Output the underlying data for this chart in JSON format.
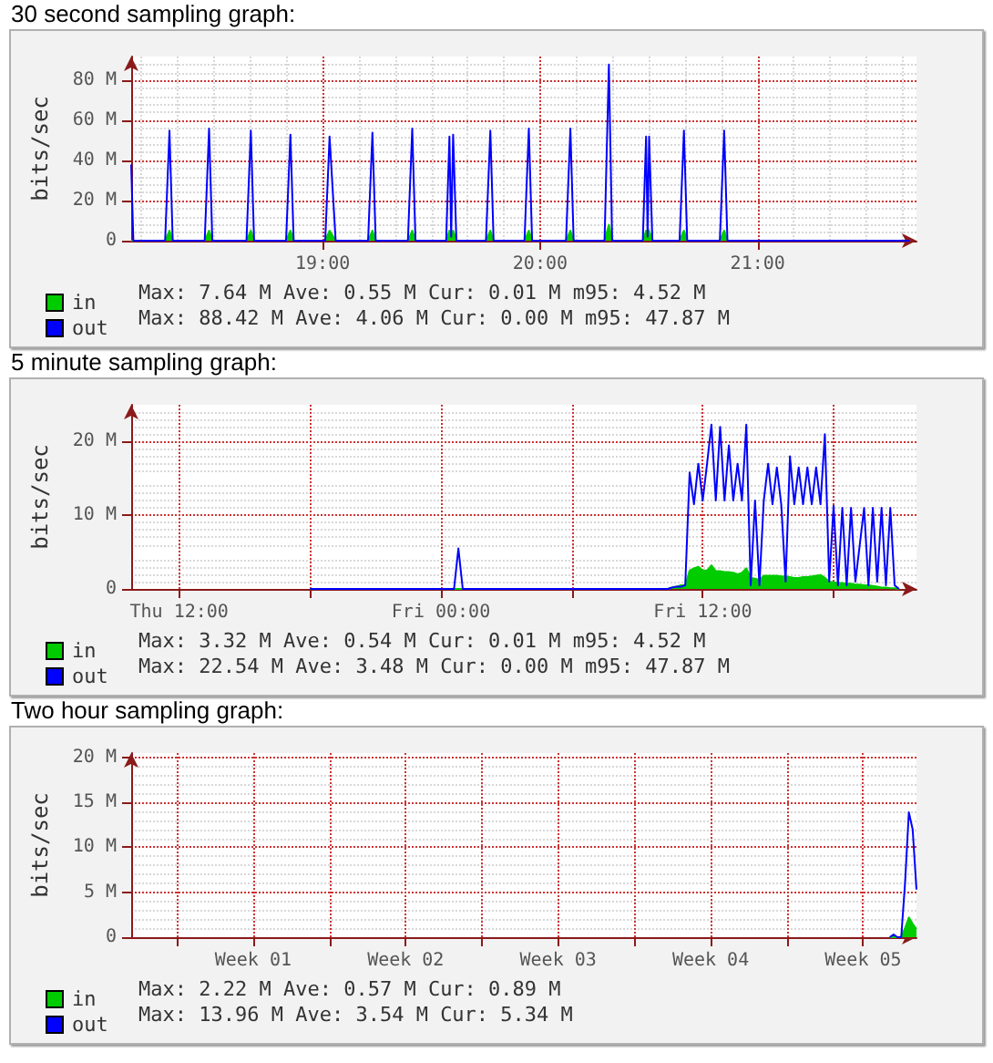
{
  "chart_data": [
    {
      "type": "line",
      "title": "30 second sampling graph:",
      "ylabel": "bits/sec",
      "grid": true,
      "legend": "bottom left",
      "xlim": [
        18.12,
        21.73
      ],
      "xticks": [
        {
          "value": 19,
          "label": "19:00"
        },
        {
          "value": 20,
          "label": "20:00"
        },
        {
          "value": 21,
          "label": "21:00"
        }
      ],
      "ylim": [
        0,
        92
      ],
      "yticks": [
        {
          "value": 0,
          "label": "0"
        },
        {
          "value": 20,
          "label": "20 M"
        },
        {
          "value": 40,
          "label": "40 M"
        },
        {
          "value": 60,
          "label": "60 M"
        },
        {
          "value": 80,
          "label": "80 M"
        }
      ],
      "x": [
        18.12,
        18.13,
        18.276,
        18.296,
        18.311,
        18.458,
        18.478,
        18.493,
        18.65,
        18.67,
        18.685,
        18.832,
        18.852,
        18.867,
        19.012,
        19.032,
        19.06,
        19.209,
        19.229,
        19.244,
        19.392,
        19.412,
        19.427,
        19.568,
        19.583,
        19.591,
        19.6,
        19.615,
        19.751,
        19.771,
        19.786,
        19.928,
        19.948,
        19.963,
        20.119,
        20.139,
        20.154,
        20.296,
        20.316,
        20.331,
        20.472,
        20.487,
        20.494,
        20.501,
        20.516,
        20.641,
        20.661,
        20.676,
        20.826,
        20.846,
        20.861,
        21.7
      ],
      "series": [
        {
          "name": "in",
          "type": "area",
          "color": "#00cc00",
          "values": [
            0,
            0,
            0,
            5,
            0,
            0,
            5,
            0,
            0,
            5,
            0,
            0,
            5,
            0,
            0,
            5,
            0,
            0,
            5,
            0,
            0,
            5,
            0,
            0,
            5,
            1,
            5,
            0,
            0,
            5,
            0,
            0,
            5,
            0,
            0,
            5,
            0,
            0,
            8,
            0,
            0,
            5,
            1,
            5,
            0,
            0,
            5,
            0,
            0,
            5,
            0,
            0
          ]
        },
        {
          "name": "out",
          "type": "line",
          "color": "#0000ff",
          "values": [
            38,
            0,
            0,
            55,
            0,
            0,
            56,
            0,
            0,
            55,
            0,
            0,
            53,
            0,
            0,
            52,
            0,
            0,
            54,
            0,
            0,
            56,
            0,
            0,
            52,
            2,
            53,
            0,
            0,
            55,
            0,
            0,
            56,
            0,
            0,
            56,
            0,
            0,
            88,
            0,
            0,
            52,
            2,
            52,
            0,
            0,
            55,
            0,
            0,
            55,
            0,
            0
          ]
        }
      ],
      "annotations": [
        "Max: 7.64 M Ave: 0.55 M Cur: 0.01 M m95: 4.52 M",
        "Max: 88.42 M Ave: 4.06 M Cur: 0.00 M m95: 47.87 M"
      ]
    },
    {
      "type": "line",
      "title": "5 minute sampling graph:",
      "ylabel": "bits/sec",
      "grid": true,
      "legend": "bottom left",
      "categories": [
        null,
        null,
        null,
        null,
        null,
        null,
        null,
        null,
        null,
        null,
        null,
        "Thu 12:00",
        null,
        null,
        null,
        null,
        null,
        null,
        null,
        null,
        null,
        null,
        null,
        null,
        null,
        null,
        null,
        null,
        null,
        null,
        null,
        null,
        null,
        null,
        null,
        null,
        null,
        null,
        null,
        null,
        null,
        null,
        null,
        null,
        null,
        null,
        null,
        null,
        null,
        null,
        null,
        null,
        null,
        null,
        null,
        null,
        null,
        null,
        null,
        null,
        null,
        null,
        null,
        null,
        null,
        null,
        null,
        null,
        null,
        null,
        null,
        "Fri 00:00",
        null,
        null,
        null,
        null,
        null,
        null,
        null,
        null,
        null,
        null,
        null,
        null,
        null,
        null,
        null,
        null,
        null,
        null,
        null,
        null,
        null,
        null,
        null,
        null,
        null,
        null,
        null,
        null,
        null,
        null,
        null,
        null,
        null,
        null,
        null,
        null,
        null,
        null,
        null,
        null,
        null,
        null,
        null,
        null,
        null,
        null,
        null,
        null,
        null,
        null,
        null,
        null,
        null,
        null,
        null,
        null,
        null,
        null,
        null,
        "Fri 12:00",
        null,
        null,
        null,
        null,
        null,
        null,
        null,
        null,
        null,
        null,
        null,
        null,
        null,
        null,
        null,
        null,
        null,
        null,
        null,
        null,
        null,
        null,
        null,
        null,
        null,
        null,
        null,
        null,
        null,
        null,
        null,
        null,
        null,
        null,
        null,
        null,
        null,
        null,
        null,
        null,
        null,
        null,
        null,
        null,
        null,
        null,
        null,
        null,
        null
      ],
      "ylim": [
        0,
        25
      ],
      "yticks": [
        {
          "value": 0,
          "label": "0"
        },
        {
          "value": 10,
          "label": "10 M"
        },
        {
          "value": 20,
          "label": "20 M"
        }
      ],
      "series": [
        {
          "name": "in",
          "type": "area",
          "color": "#00cc00",
          "values": [
            null,
            null,
            null,
            null,
            null,
            null,
            null,
            null,
            null,
            null,
            null,
            null,
            null,
            null,
            null,
            null,
            null,
            null,
            null,
            null,
            null,
            null,
            null,
            null,
            null,
            null,
            null,
            null,
            null,
            null,
            null,
            null,
            null,
            null,
            null,
            null,
            null,
            null,
            null,
            null,
            null,
            0,
            0,
            0,
            0,
            0,
            0,
            0,
            0,
            0,
            0,
            0,
            0,
            0,
            0,
            0,
            0,
            0,
            0,
            0,
            0,
            0,
            0,
            0,
            0,
            0,
            0,
            0,
            0,
            0,
            0,
            0,
            0,
            0,
            0,
            0,
            0,
            0,
            0,
            0,
            0,
            0,
            0,
            0,
            0,
            0,
            0,
            0,
            0,
            0,
            0,
            0,
            0,
            0,
            0,
            0,
            0,
            0,
            0,
            0,
            0,
            0,
            0,
            0,
            0,
            0,
            0,
            0,
            0,
            0,
            0,
            0,
            0,
            0,
            0,
            0,
            0,
            0,
            0,
            0,
            0,
            0,
            0,
            0,
            0.2,
            0.3,
            0.5,
            0.5,
            2.5,
            2.8,
            3,
            2.5,
            2.5,
            3.2,
            2.4,
            2.4,
            2.3,
            2.3,
            2.2,
            2,
            2.2,
            2.8,
            1.5,
            1.4,
            1.2,
            1.8,
            1.8,
            1.8,
            1.8,
            1.7,
            1.7,
            1.6,
            1.5,
            1.5,
            1.6,
            1.6,
            1.7,
            1.8,
            1.9,
            1.5,
            1,
            0.9,
            0.8,
            0.8,
            0.7,
            0.7,
            0.6,
            0.6,
            0.5,
            0.5,
            0.4,
            0.3,
            0.2,
            0.2,
            0.1,
            0.1,
            0,
            null,
            null,
            null,
            null
          ]
        },
        {
          "name": "out",
          "type": "line",
          "color": "#0000ff",
          "values": [
            null,
            null,
            null,
            null,
            null,
            null,
            null,
            null,
            null,
            null,
            null,
            null,
            null,
            null,
            null,
            null,
            null,
            null,
            null,
            null,
            null,
            null,
            null,
            null,
            null,
            null,
            null,
            null,
            null,
            null,
            null,
            null,
            null,
            null,
            null,
            null,
            null,
            null,
            null,
            null,
            null,
            0,
            0,
            0,
            0,
            0,
            0,
            0,
            0,
            0,
            0,
            0,
            0,
            0,
            0,
            0,
            0,
            0,
            0,
            0,
            0,
            0,
            0,
            0,
            0,
            0,
            0,
            0,
            0,
            0,
            0,
            0,
            0,
            0,
            0,
            5.5,
            0,
            0,
            0,
            0,
            0,
            0,
            0,
            0,
            0,
            0,
            0,
            0,
            0,
            0,
            0,
            0,
            0,
            0,
            0,
            0,
            0,
            0,
            0,
            0,
            0,
            0,
            0,
            0,
            0,
            0,
            0,
            0,
            0,
            0,
            0,
            0,
            0,
            0,
            0,
            0,
            0,
            0,
            0,
            0,
            0,
            0,
            0,
            0,
            0.2,
            0.3,
            0.3,
            0.5,
            15.8,
            11.5,
            17,
            12,
            17,
            22.3,
            12,
            22,
            12,
            19.5,
            12,
            17,
            12,
            22.3,
            0.5,
            12,
            0.5,
            12,
            17,
            11.5,
            16.5,
            11.5,
            1,
            18,
            11.5,
            16.5,
            11.5,
            16.5,
            11.5,
            16.5,
            11.5,
            21,
            1,
            11.3,
            0.5,
            11,
            0.5,
            11,
            1,
            6,
            11,
            0.5,
            11,
            1,
            11,
            0.5,
            11,
            0.5,
            0,
            null,
            null,
            null,
            null
          ]
        }
      ],
      "annotations": [
        "Max: 3.32 M Ave: 0.54 M Cur: 0.01 M m95: 4.52 M",
        "Max: 22.54 M Ave: 3.48 M Cur: 0.00 M m95: 47.87 M"
      ]
    },
    {
      "type": "line",
      "title": "Two hour sampling graph:",
      "ylabel": "bits/sec",
      "grid": true,
      "legend": "bottom left",
      "categories": [
        null,
        null,
        null,
        null,
        null,
        null,
        null,
        null,
        null,
        null,
        null,
        null,
        null,
        null,
        null,
        null,
        null,
        null,
        null,
        null,
        null,
        null,
        null,
        null,
        null,
        null,
        null,
        null,
        null,
        null,
        null,
        null,
        "Week 01",
        null,
        null,
        null,
        null,
        null,
        null,
        null,
        null,
        null,
        null,
        null,
        null,
        null,
        null,
        null,
        null,
        null,
        null,
        null,
        null,
        null,
        null,
        null,
        null,
        null,
        null,
        null,
        null,
        null,
        null,
        null,
        null,
        null,
        null,
        null,
        null,
        null,
        null,
        null,
        "Week 02",
        null,
        null,
        null,
        null,
        null,
        null,
        null,
        null,
        null,
        null,
        null,
        null,
        null,
        null,
        null,
        null,
        null,
        null,
        null,
        null,
        null,
        null,
        null,
        null,
        null,
        null,
        null,
        null,
        null,
        null,
        null,
        null,
        null,
        null,
        null,
        null,
        null,
        null,
        null,
        "Week 03",
        null,
        null,
        null,
        null,
        null,
        null,
        null,
        null,
        null,
        null,
        null,
        null,
        null,
        null,
        null,
        null,
        null,
        null,
        null,
        null,
        null,
        null,
        null,
        null,
        null,
        null,
        null,
        null,
        null,
        null,
        null,
        null,
        null,
        null,
        null,
        null,
        null,
        null,
        null,
        "Week 04",
        null,
        null,
        null,
        null,
        null,
        null,
        null,
        null,
        null,
        null,
        null,
        null,
        null,
        null,
        null,
        null,
        null,
        null,
        null,
        null,
        null,
        null,
        null,
        null,
        null,
        null,
        null,
        null,
        null,
        null,
        null,
        null,
        null,
        null,
        null,
        null,
        null,
        null,
        null,
        "Week 05",
        null,
        null,
        null,
        null,
        null,
        null,
        null,
        null,
        null,
        null,
        null,
        null,
        null,
        null
      ],
      "ylim": [
        0,
        20.5
      ],
      "yticks": [
        {
          "value": 0,
          "label": "0"
        },
        {
          "value": 5,
          "label": "5 M"
        },
        {
          "value": 10,
          "label": "10 M"
        },
        {
          "value": 15,
          "label": "15 M"
        },
        {
          "value": 20,
          "label": "20 M"
        }
      ],
      "series": [
        {
          "name": "in",
          "type": "area",
          "color": "#00cc00",
          "values": [
            null,
            null,
            null,
            null,
            null,
            null,
            null,
            null,
            null,
            null,
            null,
            null,
            null,
            null,
            null,
            null,
            null,
            null,
            null,
            null,
            null,
            null,
            null,
            null,
            null,
            null,
            null,
            null,
            null,
            null,
            null,
            null,
            null,
            null,
            null,
            null,
            null,
            null,
            null,
            null,
            null,
            null,
            null,
            null,
            null,
            null,
            null,
            null,
            null,
            null,
            null,
            null,
            null,
            null,
            null,
            null,
            null,
            null,
            null,
            null,
            null,
            null,
            null,
            null,
            null,
            null,
            null,
            null,
            null,
            null,
            null,
            null,
            null,
            null,
            null,
            null,
            null,
            null,
            null,
            null,
            null,
            null,
            null,
            null,
            null,
            null,
            null,
            null,
            null,
            null,
            null,
            null,
            null,
            null,
            null,
            null,
            null,
            null,
            null,
            null,
            null,
            null,
            null,
            null,
            null,
            null,
            null,
            null,
            null,
            null,
            null,
            null,
            null,
            null,
            null,
            null,
            null,
            null,
            null,
            null,
            null,
            null,
            null,
            null,
            null,
            null,
            null,
            null,
            null,
            null,
            null,
            null,
            null,
            null,
            null,
            null,
            null,
            null,
            null,
            null,
            null,
            null,
            null,
            null,
            null,
            null,
            null,
            null,
            null,
            null,
            null,
            null,
            null,
            null,
            null,
            null,
            null,
            null,
            null,
            null,
            null,
            null,
            null,
            null,
            null,
            null,
            null,
            null,
            null,
            null,
            null,
            null,
            null,
            null,
            null,
            null,
            null,
            null,
            null,
            null,
            null,
            null,
            null,
            null,
            null,
            null,
            null,
            null,
            null,
            null,
            null,
            null,
            null,
            null,
            null,
            null,
            null,
            null,
            null,
            0,
            0,
            0,
            0,
            1,
            2.2,
            1.5,
            0.9
          ]
        },
        {
          "name": "out",
          "type": "line",
          "color": "#0000ff",
          "values": [
            null,
            null,
            null,
            null,
            null,
            null,
            null,
            null,
            null,
            null,
            null,
            null,
            null,
            null,
            null,
            null,
            null,
            null,
            null,
            null,
            null,
            null,
            null,
            null,
            null,
            null,
            null,
            null,
            null,
            null,
            null,
            null,
            null,
            null,
            null,
            null,
            null,
            null,
            null,
            null,
            null,
            null,
            null,
            null,
            null,
            null,
            null,
            null,
            null,
            null,
            null,
            null,
            null,
            null,
            null,
            null,
            null,
            null,
            null,
            null,
            null,
            null,
            null,
            null,
            null,
            null,
            null,
            null,
            null,
            null,
            null,
            null,
            null,
            null,
            null,
            null,
            null,
            null,
            null,
            null,
            null,
            null,
            null,
            null,
            null,
            null,
            null,
            null,
            null,
            null,
            null,
            null,
            null,
            null,
            null,
            null,
            null,
            null,
            null,
            null,
            null,
            null,
            null,
            null,
            null,
            null,
            null,
            null,
            null,
            null,
            null,
            null,
            null,
            null,
            null,
            null,
            null,
            null,
            null,
            null,
            null,
            null,
            null,
            null,
            null,
            null,
            null,
            null,
            null,
            null,
            null,
            null,
            null,
            null,
            null,
            null,
            null,
            null,
            null,
            null,
            null,
            null,
            null,
            null,
            null,
            null,
            null,
            null,
            null,
            null,
            null,
            null,
            null,
            null,
            null,
            null,
            null,
            null,
            null,
            null,
            null,
            null,
            null,
            null,
            null,
            null,
            null,
            null,
            null,
            null,
            null,
            null,
            null,
            null,
            null,
            null,
            null,
            null,
            null,
            null,
            null,
            null,
            null,
            null,
            null,
            null,
            null,
            null,
            null,
            null,
            null,
            null,
            null,
            null,
            null,
            null,
            null,
            null,
            null,
            0,
            0.3,
            0,
            0,
            6,
            13.9,
            12,
            5.3
          ]
        }
      ],
      "annotations": [
        "Max: 2.22 M Ave: 0.57 M Cur: 0.89 M",
        "Max: 13.96 M Ave: 3.54 M Cur: 5.34 M"
      ]
    }
  ]
}
